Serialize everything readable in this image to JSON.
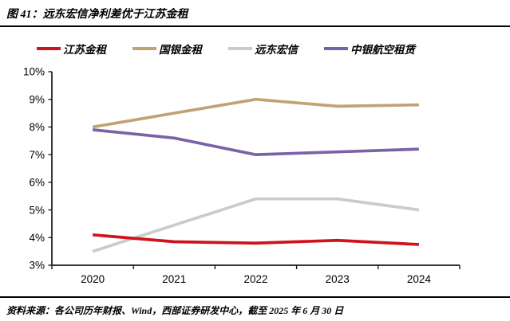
{
  "figure": {
    "title": "图 41：远东宏信净利差优于江苏金租",
    "source_note": "资料来源：各公司历年财报、Wind，西部证券研发中心，截至 2025 年 6 月 30 日"
  },
  "colors": {
    "axis": "#1a1a1a",
    "rule": "#000000",
    "jiangsu_red": "#CE121E",
    "cdb_tan": "#C2A273",
    "fareast_gray": "#CBCBCB",
    "boc_purple": "#7A62A8"
  },
  "chart_data": {
    "type": "line",
    "title": "图 41：远东宏信净利差优于江苏金租",
    "x": [
      "2020",
      "2021",
      "2022",
      "2023",
      "2024"
    ],
    "series": [
      {
        "key": "jiangsu-leasing",
        "name": "江苏金租",
        "color": "#CE121E",
        "values": [
          4.1,
          3.85,
          3.8,
          3.9,
          3.75
        ]
      },
      {
        "key": "cdb-leasing",
        "name": "国银金租",
        "color": "#C2A273",
        "values": [
          8.0,
          8.5,
          9.0,
          8.75,
          8.8
        ]
      },
      {
        "key": "far-east-horizon",
        "name": "远东宏信",
        "color": "#CBCBCB",
        "values": [
          3.5,
          4.45,
          5.4,
          5.4,
          5.0
        ]
      },
      {
        "key": "boc-aviation",
        "name": "中银航空租赁",
        "color": "#7A62A8",
        "values": [
          7.9,
          7.6,
          7.0,
          7.1,
          7.2
        ]
      }
    ],
    "ylim": [
      3,
      10
    ],
    "ytick_step": 1,
    "ytick_suffix": "%",
    "xlabel": "",
    "ylabel": "",
    "grid": false,
    "legend_position": "top"
  }
}
